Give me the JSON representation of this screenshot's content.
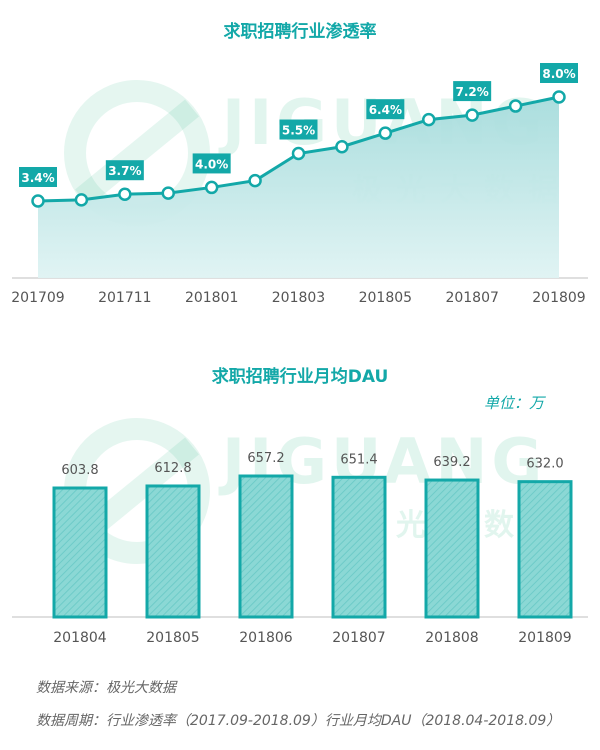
{
  "watermark": {
    "brand": "JIGUANG",
    "cn": "极光大数据"
  },
  "source_line": "数据来源：极光大数据",
  "period_line": "数据周期：行业渗透率（2017.09-2018.09）行业月均DAU（2018.04-2018.09）",
  "colors": {
    "accent": "#13a8a8",
    "bar_fill": "#82d6d3",
    "bar_border": "#13a8a8",
    "area_top": "#a7dede",
    "area_bottom": "#d9f1f1"
  },
  "chart_data": [
    {
      "type": "area",
      "title": "求职招聘行业渗透率",
      "x": [
        "201709",
        "201710",
        "201711",
        "201712",
        "201801",
        "201802",
        "201803",
        "201804",
        "201805",
        "201806",
        "201807",
        "201808",
        "201809"
      ],
      "tick_labels": [
        "201709",
        "201711",
        "201801",
        "201803",
        "201805",
        "201807",
        "201809"
      ],
      "values": [
        3.4,
        3.45,
        3.7,
        3.75,
        4.0,
        4.3,
        5.5,
        5.8,
        6.4,
        7.0,
        7.2,
        7.6,
        8.0
      ],
      "data_labels": [
        {
          "index": 0,
          "text": "3.4%"
        },
        {
          "index": 2,
          "text": "3.7%"
        },
        {
          "index": 4,
          "text": "4.0%"
        },
        {
          "index": 6,
          "text": "5.5%"
        },
        {
          "index": 8,
          "text": "6.4%"
        },
        {
          "index": 10,
          "text": "7.2%"
        },
        {
          "index": 12,
          "text": "8.0%"
        }
      ],
      "ylim": [
        0,
        9
      ],
      "grid": false
    },
    {
      "type": "bar",
      "title": "求职招聘行业月均DAU",
      "unit": "单位：万",
      "categories": [
        "201804",
        "201805",
        "201806",
        "201807",
        "201808",
        "201809"
      ],
      "values": [
        603.8,
        612.8,
        657.2,
        651.4,
        639.2,
        632.0
      ],
      "value_labels": [
        "603.8",
        "612.8",
        "657.2",
        "651.4",
        "639.2",
        "632.0"
      ],
      "ylim": [
        0,
        680
      ],
      "grid": false
    }
  ]
}
